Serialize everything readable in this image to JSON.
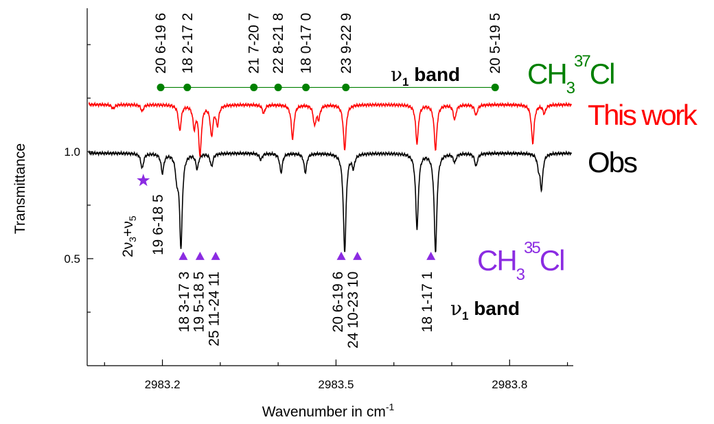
{
  "chart_data": {
    "type": "line",
    "xlabel": "Wavenumber in cm",
    "xlabel_sup": "-1",
    "ylabel": "Transmittance",
    "xlim": [
      2983.07,
      2983.91
    ],
    "ylim": [
      -0.0,
      1.67
    ],
    "x_ticks": [
      2983.2,
      2983.5,
      2983.8
    ],
    "x_tick_labels": [
      "2983.2",
      "2983.5",
      "2983.8"
    ],
    "y_ticks": [
      0.5,
      1.0
    ],
    "y_tick_labels": [
      "0.5",
      "1.0"
    ],
    "series": [
      {
        "name": "Obs",
        "color": "#000000",
        "baseline": 0.993,
        "lines": [
          [
            2983.165,
            0.07
          ],
          [
            2983.2,
            0.09
          ],
          [
            2983.225,
            0.1
          ],
          [
            2983.232,
            0.43
          ],
          [
            2983.26,
            0.07
          ],
          [
            2983.285,
            0.06
          ],
          [
            2983.37,
            0.03
          ],
          [
            2983.405,
            0.09
          ],
          [
            2983.447,
            0.09
          ],
          [
            2983.515,
            0.46
          ],
          [
            2983.53,
            0.06
          ],
          [
            2983.64,
            0.35
          ],
          [
            2983.672,
            0.46
          ],
          [
            2983.705,
            0.04
          ],
          [
            2983.742,
            0.06
          ],
          [
            2983.855,
            0.16
          ],
          [
            2983.85,
            0.05
          ]
        ]
      },
      {
        "name": "This work",
        "color": "#ff0000",
        "baseline": 1.22,
        "lines": [
          [
            2983.115,
            0.02
          ],
          [
            2983.165,
            0.03
          ],
          [
            2983.23,
            0.12
          ],
          [
            2983.255,
            0.1
          ],
          [
            2983.265,
            0.23
          ],
          [
            2983.285,
            0.14
          ],
          [
            2983.295,
            0.09
          ],
          [
            2983.375,
            0.04
          ],
          [
            2983.425,
            0.16
          ],
          [
            2983.463,
            0.09
          ],
          [
            2983.47,
            0.06
          ],
          [
            2983.515,
            0.21
          ],
          [
            2983.64,
            0.18
          ],
          [
            2983.672,
            0.21
          ],
          [
            2983.705,
            0.07
          ],
          [
            2983.742,
            0.05
          ],
          [
            2983.84,
            0.18
          ],
          [
            2983.86,
            0.04
          ]
        ]
      }
    ],
    "ch3_37cl": {
      "color": "#008000",
      "y_level": 1.3,
      "markers": [
        2983.197,
        2983.243,
        2983.358,
        2983.4,
        2983.448,
        2983.517,
        2983.775
      ],
      "labels": [
        "20 6-19 6",
        "18 2-17 2",
        "21 7-20 7",
        "22 8-21 8",
        "18 0-17 0",
        "23 9-22 9",
        "20 5-19 5"
      ]
    },
    "ch3_35cl": {
      "color": "#8b2be2",
      "y_level": 0.51,
      "markers": [
        2983.236,
        2983.265,
        2983.292,
        2983.509,
        2983.537,
        2983.664
      ],
      "labels": [
        {
          "x": 2983.237,
          "text": "18 3-17 3"
        },
        {
          "x": 2983.263,
          "text": "19 5-18 5"
        },
        {
          "x": 2983.289,
          "text": "25 11-24 11"
        },
        {
          "x": 2983.503,
          "text": "20 6-19 6"
        },
        {
          "x": 2983.529,
          "text": "24 10-23 10"
        },
        {
          "x": 2983.657,
          "text": "18 1-17 1"
        }
      ]
    },
    "star": {
      "x": 2983.167,
      "y": 0.865,
      "color": "#8b2be2"
    }
  },
  "annotations": {
    "ch3_37cl_label": {
      "base": "CH",
      "sub": "3",
      "sup": "37",
      "tail": "Cl",
      "color": "#008000"
    },
    "ch3_35cl_label": {
      "base": "CH",
      "sub": "3",
      "sup": "35",
      "tail": "Cl",
      "color": "#8b2be2"
    },
    "legend_this_work": {
      "text": "This work",
      "color": "#ff0000"
    },
    "legend_obs": {
      "text": "Obs",
      "color": "#000000"
    },
    "nu1_band_upper": {
      "nu": "ν",
      "sub": "1",
      "text": " band"
    },
    "nu1_band_lower": {
      "nu": "ν",
      "sub": "1",
      "text": " band"
    },
    "combo_band": {
      "part1": "2ν",
      "sub1": "3",
      "part2": "+ν",
      "sub2": "5"
    },
    "combo_label": "19 6-18 5"
  }
}
